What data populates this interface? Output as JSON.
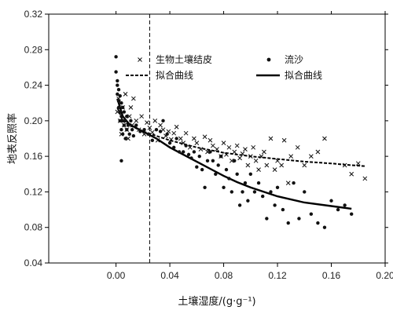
{
  "chart_data": {
    "type": "scatter",
    "xlabel": "土壤湿度/(g·g⁻¹)",
    "ylabel": "地表反照率",
    "xlim": [
      -0.05,
      0.2
    ],
    "ylim": [
      0.04,
      0.32
    ],
    "x_ticks": [
      "0.00",
      "0.04",
      "0.08",
      "0.12",
      "0.16",
      "0.20"
    ],
    "x_tick_values": [
      0.0,
      0.04,
      0.08,
      0.12,
      0.16,
      0.2
    ],
    "y_ticks": [
      "0.04",
      "0.08",
      "0.12",
      "0.16",
      "0.20",
      "0.24",
      "0.28",
      "0.32"
    ],
    "y_tick_values": [
      0.04,
      0.08,
      0.12,
      0.16,
      0.2,
      0.24,
      0.28,
      0.32
    ],
    "grid": false,
    "legend_position": "top",
    "reference_line": {
      "x": 0.025,
      "style": "dashed"
    },
    "series": [
      {
        "name": "生物土壤结皮",
        "marker": "x",
        "points": [
          [
            0.001,
            0.21
          ],
          [
            0.002,
            0.225
          ],
          [
            0.003,
            0.2
          ],
          [
            0.004,
            0.185
          ],
          [
            0.005,
            0.215
          ],
          [
            0.006,
            0.195
          ],
          [
            0.007,
            0.23
          ],
          [
            0.008,
            0.19
          ],
          [
            0.009,
            0.18
          ],
          [
            0.01,
            0.205
          ],
          [
            0.011,
            0.215
          ],
          [
            0.012,
            0.195
          ],
          [
            0.013,
            0.225
          ],
          [
            0.015,
            0.2
          ],
          [
            0.017,
            0.19
          ],
          [
            0.019,
            0.205
          ],
          [
            0.021,
            0.185
          ],
          [
            0.023,
            0.198
          ],
          [
            0.025,
            0.192
          ],
          [
            0.027,
            0.187
          ],
          [
            0.029,
            0.2
          ],
          [
            0.031,
            0.178
          ],
          [
            0.033,
            0.195
          ],
          [
            0.035,
            0.19
          ],
          [
            0.037,
            0.183
          ],
          [
            0.039,
            0.188
          ],
          [
            0.041,
            0.179
          ],
          [
            0.043,
            0.186
          ],
          [
            0.045,
            0.193
          ],
          [
            0.048,
            0.18
          ],
          [
            0.05,
            0.175
          ],
          [
            0.052,
            0.186
          ],
          [
            0.055,
            0.17
          ],
          [
            0.058,
            0.18
          ],
          [
            0.06,
            0.175
          ],
          [
            0.063,
            0.168
          ],
          [
            0.066,
            0.182
          ],
          [
            0.068,
            0.165
          ],
          [
            0.07,
            0.178
          ],
          [
            0.072,
            0.172
          ],
          [
            0.075,
            0.168
          ],
          [
            0.078,
            0.16
          ],
          [
            0.08,
            0.175
          ],
          [
            0.082,
            0.162
          ],
          [
            0.084,
            0.17
          ],
          [
            0.086,
            0.155
          ],
          [
            0.088,
            0.165
          ],
          [
            0.09,
            0.172
          ],
          [
            0.092,
            0.158
          ],
          [
            0.094,
            0.163
          ],
          [
            0.096,
            0.168
          ],
          [
            0.098,
            0.15
          ],
          [
            0.1,
            0.16
          ],
          [
            0.102,
            0.17
          ],
          [
            0.104,
            0.155
          ],
          [
            0.106,
            0.145
          ],
          [
            0.108,
            0.16
          ],
          [
            0.11,
            0.165
          ],
          [
            0.112,
            0.15
          ],
          [
            0.115,
            0.18
          ],
          [
            0.118,
            0.145
          ],
          [
            0.12,
            0.155
          ],
          [
            0.123,
            0.15
          ],
          [
            0.125,
            0.178
          ],
          [
            0.128,
            0.13
          ],
          [
            0.13,
            0.16
          ],
          [
            0.135,
            0.17
          ],
          [
            0.14,
            0.15
          ],
          [
            0.145,
            0.16
          ],
          [
            0.15,
            0.165
          ],
          [
            0.155,
            0.18
          ],
          [
            0.17,
            0.15
          ],
          [
            0.175,
            0.14
          ],
          [
            0.18,
            0.152
          ],
          [
            0.185,
            0.135
          ]
        ]
      },
      {
        "name": "流沙",
        "marker": "dot",
        "points": [
          [
            0.0,
            0.272
          ],
          [
            0.0,
            0.255
          ],
          [
            0.001,
            0.24
          ],
          [
            0.001,
            0.23
          ],
          [
            0.001,
            0.245
          ],
          [
            0.002,
            0.222
          ],
          [
            0.002,
            0.235
          ],
          [
            0.002,
            0.215
          ],
          [
            0.003,
            0.228
          ],
          [
            0.003,
            0.21
          ],
          [
            0.003,
            0.2
          ],
          [
            0.004,
            0.22
          ],
          [
            0.004,
            0.205
          ],
          [
            0.004,
            0.19
          ],
          [
            0.005,
            0.215
          ],
          [
            0.005,
            0.2
          ],
          [
            0.005,
            0.185
          ],
          [
            0.006,
            0.21
          ],
          [
            0.006,
            0.195
          ],
          [
            0.007,
            0.2
          ],
          [
            0.007,
            0.18
          ],
          [
            0.008,
            0.205
          ],
          [
            0.008,
            0.19
          ],
          [
            0.009,
            0.195
          ],
          [
            0.01,
            0.185
          ],
          [
            0.011,
            0.2
          ],
          [
            0.012,
            0.19
          ],
          [
            0.013,
            0.183
          ],
          [
            0.004,
            0.155
          ],
          [
            0.015,
            0.195
          ],
          [
            0.018,
            0.188
          ],
          [
            0.021,
            0.19
          ],
          [
            0.024,
            0.185
          ],
          [
            0.027,
            0.178
          ],
          [
            0.03,
            0.19
          ],
          [
            0.033,
            0.188
          ],
          [
            0.035,
            0.2
          ],
          [
            0.038,
            0.185
          ],
          [
            0.04,
            0.175
          ],
          [
            0.043,
            0.17
          ],
          [
            0.045,
            0.18
          ],
          [
            0.047,
            0.165
          ],
          [
            0.05,
            0.165
          ],
          [
            0.052,
            0.172
          ],
          [
            0.054,
            0.162
          ],
          [
            0.056,
            0.158
          ],
          [
            0.058,
            0.165
          ],
          [
            0.06,
            0.148
          ],
          [
            0.062,
            0.16
          ],
          [
            0.064,
            0.145
          ],
          [
            0.066,
            0.125
          ],
          [
            0.068,
            0.155
          ],
          [
            0.07,
            0.165
          ],
          [
            0.072,
            0.155
          ],
          [
            0.074,
            0.14
          ],
          [
            0.076,
            0.15
          ],
          [
            0.078,
            0.16
          ],
          [
            0.08,
            0.125
          ],
          [
            0.082,
            0.145
          ],
          [
            0.084,
            0.135
          ],
          [
            0.086,
            0.12
          ],
          [
            0.088,
            0.155
          ],
          [
            0.09,
            0.14
          ],
          [
            0.092,
            0.105
          ],
          [
            0.094,
            0.12
          ],
          [
            0.096,
            0.13
          ],
          [
            0.098,
            0.11
          ],
          [
            0.1,
            0.14
          ],
          [
            0.103,
            0.12
          ],
          [
            0.106,
            0.13
          ],
          [
            0.109,
            0.115
          ],
          [
            0.112,
            0.09
          ],
          [
            0.115,
            0.12
          ],
          [
            0.118,
            0.105
          ],
          [
            0.12,
            0.125
          ],
          [
            0.124,
            0.1
          ],
          [
            0.128,
            0.085
          ],
          [
            0.132,
            0.13
          ],
          [
            0.136,
            0.09
          ],
          [
            0.14,
            0.12
          ],
          [
            0.145,
            0.095
          ],
          [
            0.15,
            0.085
          ],
          [
            0.155,
            0.08
          ],
          [
            0.16,
            0.11
          ],
          [
            0.165,
            0.1
          ],
          [
            0.17,
            0.105
          ],
          [
            0.175,
            0.095
          ]
        ]
      }
    ],
    "fits": [
      {
        "name": "拟合曲线",
        "for_series": "生物土壤结皮",
        "style": "dashed",
        "points": [
          [
            0.001,
            0.215
          ],
          [
            0.005,
            0.2
          ],
          [
            0.01,
            0.195
          ],
          [
            0.02,
            0.188
          ],
          [
            0.03,
            0.183
          ],
          [
            0.04,
            0.178
          ],
          [
            0.05,
            0.174
          ],
          [
            0.06,
            0.17
          ],
          [
            0.07,
            0.167
          ],
          [
            0.08,
            0.164
          ],
          [
            0.1,
            0.16
          ],
          [
            0.12,
            0.157
          ],
          [
            0.14,
            0.154
          ],
          [
            0.16,
            0.152
          ],
          [
            0.175,
            0.15
          ],
          [
            0.185,
            0.149
          ]
        ]
      },
      {
        "name": "拟合曲线",
        "for_series": "流沙",
        "style": "solid",
        "points": [
          [
            0.001,
            0.225
          ],
          [
            0.005,
            0.205
          ],
          [
            0.01,
            0.196
          ],
          [
            0.02,
            0.188
          ],
          [
            0.03,
            0.18
          ],
          [
            0.04,
            0.17
          ],
          [
            0.05,
            0.162
          ],
          [
            0.06,
            0.154
          ],
          [
            0.07,
            0.146
          ],
          [
            0.08,
            0.138
          ],
          [
            0.09,
            0.131
          ],
          [
            0.1,
            0.125
          ],
          [
            0.12,
            0.115
          ],
          [
            0.14,
            0.108
          ],
          [
            0.16,
            0.104
          ],
          [
            0.175,
            0.101
          ]
        ]
      }
    ]
  }
}
